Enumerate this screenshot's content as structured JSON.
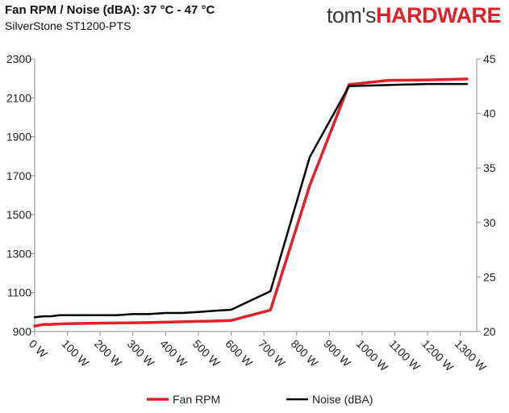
{
  "header": {
    "title": "Fan RPM / Noise (dBA): 37 °C - 47 °C",
    "subtitle": "SilverStone ST1200-PTS",
    "logo_part1": "tom's",
    "logo_part2": "HARDWARE"
  },
  "chart_data": {
    "type": "line",
    "x": [
      0,
      25,
      50,
      75,
      100,
      125,
      150,
      200,
      250,
      300,
      350,
      400,
      450,
      500,
      550,
      600,
      720,
      840,
      960,
      1080,
      1200,
      1320
    ],
    "series": [
      {
        "name": "Fan RPM",
        "axis": "left",
        "color": "#e0202a",
        "values": [
          928,
          936,
          937,
          939,
          940,
          941,
          942,
          943,
          944,
          945,
          946,
          948,
          950,
          952,
          954,
          957,
          1010,
          1650,
          2168,
          2190,
          2192,
          2197
        ]
      },
      {
        "name": "Noise (dBA)",
        "axis": "right",
        "color": "#000000",
        "values": [
          21.3,
          21.4,
          21.4,
          21.5,
          21.5,
          21.5,
          21.5,
          21.5,
          21.5,
          21.6,
          21.6,
          21.7,
          21.7,
          21.8,
          21.9,
          22.0,
          23.7,
          36.0,
          42.5,
          42.6,
          42.7,
          42.7
        ]
      }
    ],
    "x_ticks": [
      "0 W",
      "100 W",
      "200 W",
      "300 W",
      "400 W",
      "500 W",
      "600 W",
      "700 W",
      "800 W",
      "900 W",
      "1000 W",
      "1100 W",
      "1200 W",
      "1300 W"
    ],
    "y_left_ticks": [
      "900",
      "1100",
      "1300",
      "1500",
      "1700",
      "1900",
      "2100",
      "2300"
    ],
    "y_right_ticks": [
      "20",
      "25",
      "30",
      "35",
      "40",
      "45"
    ],
    "xlim": [
      0,
      1350
    ],
    "ylim_left": [
      900,
      2300
    ],
    "ylim_right": [
      20,
      45
    ],
    "grid": false,
    "legend_position": "bottom"
  }
}
